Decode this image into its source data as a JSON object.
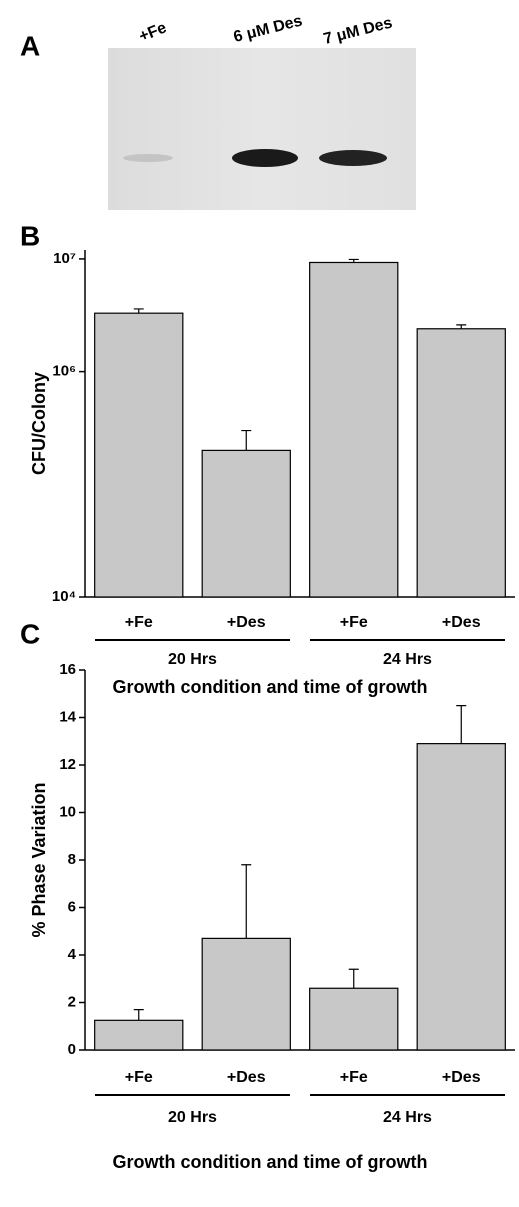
{
  "panel_a": {
    "label": "A",
    "lanes": [
      "+Fe",
      "6 μM Des",
      "7 μM Des"
    ]
  },
  "chart_data": [
    {
      "type": "bar",
      "panel_label": "B",
      "log_scale": true,
      "categories": [
        "+Fe",
        "+Des",
        "+Fe",
        "+Des"
      ],
      "groups": [
        "20 Hrs",
        "24 Hrs"
      ],
      "x_label": "Growth condition and time of growth",
      "y_label": "CFU/Colony",
      "values": [
        3300000,
        200000,
        9300000,
        2400000
      ],
      "errors": [
        300000,
        100000,
        600000,
        200000
      ],
      "color": "#c8c8c8",
      "ylim": [
        10000,
        12000000
      ],
      "yticks": [
        {
          "value": 10000,
          "label": "10⁴"
        },
        {
          "value": 1000000,
          "label": "10⁶"
        },
        {
          "value": 10000000,
          "label": "10⁷"
        }
      ]
    },
    {
      "type": "bar",
      "panel_label": "C",
      "log_scale": false,
      "categories": [
        "+Fe",
        "+Des",
        "+Fe",
        "+Des"
      ],
      "groups": [
        "20 Hrs",
        "24 Hrs"
      ],
      "x_label": "Growth condition and time of growth",
      "y_label": "% Phase Variation",
      "values": [
        1.25,
        4.7,
        2.6,
        12.9
      ],
      "errors": [
        0.45,
        3.1,
        0.8,
        1.6
      ],
      "color": "#c8c8c8",
      "ylim": [
        0,
        16
      ],
      "yticks": [
        0,
        2,
        4,
        6,
        8,
        10,
        12,
        14,
        16
      ]
    }
  ]
}
